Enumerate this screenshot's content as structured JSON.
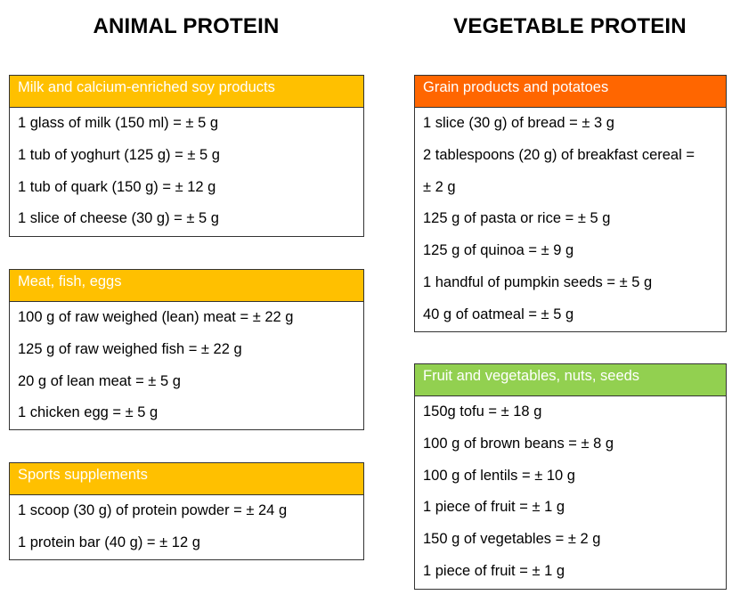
{
  "columns": {
    "animal_title": "ANIMAL PROTEIN",
    "vegetable_title": "VEGETABLE PROTEIN"
  },
  "colors": {
    "orange_yellow": "#FFC000",
    "deep_orange": "#FF6600",
    "green": "#92D050",
    "border": "#333333"
  },
  "animal": {
    "milk": {
      "header": "Milk and calcium-enriched soy products",
      "items": [
        "1 glass of milk (150 ml) = ± 5 g",
        "1 tub of yoghurt (125 g) = ± 5 g",
        "1 tub of quark (150 g) = ± 12 g",
        "1 slice of cheese (30 g) = ± 5 g"
      ]
    },
    "meat": {
      "header": "Meat, fish, eggs",
      "items": [
        "100 g of raw weighed (lean) meat = ± 22 g",
        "125 g of raw weighed fish = ± 22 g",
        "20 g of lean meat = ± 5 g",
        "1 chicken egg = ± 5 g"
      ]
    },
    "sports": {
      "header": "Sports supplements",
      "items": [
        "1 scoop (30 g) of protein powder = ± 24 g",
        "1 protein bar (40 g) = ± 12 g"
      ]
    }
  },
  "vegetable": {
    "grain": {
      "header": "Grain products and potatoes",
      "items": [
        "1 slice (30 g) of bread = ± 3 g",
        "2 tablespoons (20 g) of breakfast cereal =",
        "± 2 g",
        "125 g of pasta or rice = ± 5 g",
        "125 g of quinoa = ± 9 g",
        "1 handful of pumpkin seeds = ± 5 g",
        "40 g of oatmeal = ± 5 g"
      ]
    },
    "fruit": {
      "header": "Fruit and vegetables, nuts, seeds",
      "items": [
        "150g tofu = ± 18 g",
        "100 g of brown beans = ± 8 g",
        "100 g of lentils = ± 10 g",
        "1 piece of fruit = ± 1 g",
        "150 g of vegetables = ± 2 g",
        "1 piece of fruit = ± 1 g"
      ]
    }
  }
}
